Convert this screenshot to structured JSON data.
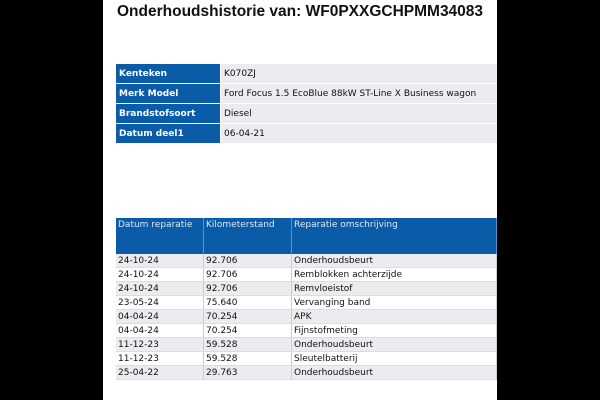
{
  "title": "Onderhoudshistorie van: WF0PXXGCHPMM34083",
  "info": [
    {
      "label": "Kenteken",
      "value": "K070ZJ"
    },
    {
      "label": "Merk Model",
      "value": "Ford Focus 1.5 EcoBlue 88kW ST-Line X Business wagon"
    },
    {
      "label": "Brandstofsoort",
      "value": "Diesel"
    },
    {
      "label": "Datum deel1",
      "value": "06-04-21"
    }
  ],
  "repairs": {
    "headers": [
      "Datum reparatie",
      "Kilometerstand",
      "Reparatie omschrijving"
    ],
    "rows": [
      [
        "24-10-24",
        "92.706",
        "Onderhoudsbeurt"
      ],
      [
        "24-10-24",
        "92.706",
        "Remblokken achterzijde"
      ],
      [
        "24-10-24",
        "92.706",
        "Remvloeistof"
      ],
      [
        "23-05-24",
        "75.640",
        "Vervanging band"
      ],
      [
        "04-04-24",
        "70.254",
        "APK"
      ],
      [
        "04-04-24",
        "70.254",
        "Fijnstofmeting"
      ],
      [
        "11-12-23",
        "59.528",
        "Onderhoudsbeurt"
      ],
      [
        "11-12-23",
        "59.528",
        "Sleutelbatterij"
      ],
      [
        "25-04-22",
        "29.763",
        "Onderhoudsbeurt"
      ]
    ]
  },
  "colors": {
    "header_blue": "#0a5ba8",
    "row_gray": "#ebebf0"
  }
}
